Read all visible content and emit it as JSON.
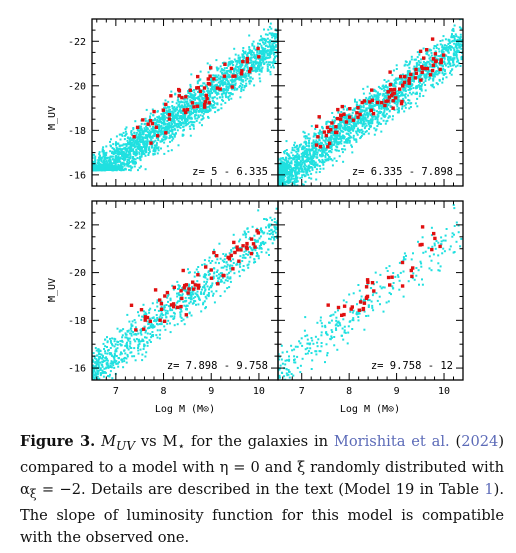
{
  "figure": {
    "panels": [
      {
        "label": "z= 5 - 6.335",
        "density": 1.0,
        "obs_count": 62
      },
      {
        "label": "z= 6.335 - 7.898",
        "density": 0.85,
        "obs_count": 95
      },
      {
        "label": "z= 7.898 - 9.758",
        "density": 0.35,
        "obs_count": 65
      },
      {
        "label": "z= 9.758 - 12",
        "density": 0.12,
        "obs_count": 35
      }
    ],
    "x_axis_label": "Log M (M⊙)",
    "y_axis_label": "M_UV",
    "x_ticks": [
      "7",
      "8",
      "9",
      "10"
    ],
    "y_ticks": [
      "-22",
      "-20",
      "-18",
      "-16"
    ],
    "colors": {
      "model": "#20e0e0",
      "observed": "#e01010"
    }
  },
  "chart_data": {
    "type": "scatter",
    "xlabel": "Log M (M⊙)",
    "ylabel": "M_UV",
    "xlim": [
      6.5,
      10.4
    ],
    "ylim": [
      -15.5,
      -23
    ],
    "series": [
      {
        "values": "model galaxies"
      },
      {
        "values": "observed galaxies"
      }
    ]
  },
  "caption": {
    "label": "Figure 3.",
    "p1": "M",
    "p1_sub": "UV",
    "p2": " vs M",
    "p2_sub": "⋆",
    "p3": " for the galaxies in ",
    "link1": "Morishita et al.",
    "p4": "(",
    "link2": "2024",
    "p5": ") compared to a model with η = 0 and ξ randomly distributed with α",
    "p5_sub": "ξ",
    "p6": " = −2. Details are described in the text (Model 19 in Table ",
    "link3": "1",
    "p7": "). The slope of luminosity function for this model is compatible with the observed one."
  }
}
